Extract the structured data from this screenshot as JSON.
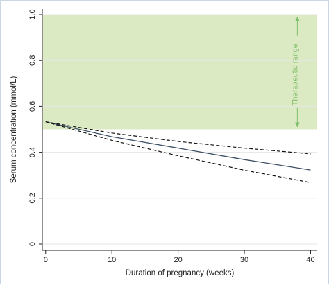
{
  "chart_data": {
    "type": "line",
    "xlabel": "Duration of pregnancy (weeks)",
    "ylabel": "Serum concentration (mmol/L)",
    "xlim": [
      -0.5,
      41
    ],
    "ylim": [
      0,
      1.0
    ],
    "x_ticks": [
      0,
      10,
      20,
      30,
      40
    ],
    "x_tick_labels": [
      "0",
      "10",
      "20",
      "30",
      "40"
    ],
    "y_ticks": [
      0,
      0.2,
      0.4,
      0.6,
      0.8,
      1.0
    ],
    "y_tick_labels": [
      "0",
      "0.2",
      "0.4",
      "0.6",
      "0.8",
      "1.0"
    ],
    "grid": true,
    "shaded_band": {
      "ymin": 0.5,
      "ymax": 1.0,
      "color": "#dceac3"
    },
    "annotation": {
      "text": "Therapeutic range",
      "x": 38,
      "y": [
        0.5,
        1.0
      ],
      "color": "#7fbf6a"
    },
    "series": [
      {
        "style": "solid",
        "color": "#3b4f66",
        "x": [
          0,
          10,
          20,
          30,
          40
        ],
        "y": [
          0.533,
          0.468,
          0.418,
          0.368,
          0.323
        ]
      },
      {
        "style": "dashed",
        "color": "#111111",
        "x": [
          0,
          10,
          20,
          30,
          40
        ],
        "y": [
          0.533,
          0.484,
          0.447,
          0.418,
          0.393
        ]
      },
      {
        "style": "dashed",
        "color": "#111111",
        "x": [
          0,
          10,
          20,
          30,
          40
        ],
        "y": [
          0.533,
          0.452,
          0.385,
          0.322,
          0.268
        ]
      }
    ]
  }
}
